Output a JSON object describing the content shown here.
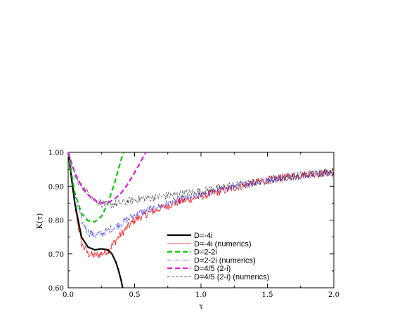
{
  "chart_data": {
    "type": "line",
    "xlabel": "τ",
    "ylabel": "K(τ)",
    "xlim": [
      0.0,
      2.0
    ],
    "ylim": [
      0.6,
      1.0
    ],
    "x_ticks": [
      "0.0",
      "0.5",
      "1.0",
      "1.5",
      "2.0"
    ],
    "y_ticks": [
      "0.60",
      "0.70",
      "0.80",
      "0.90",
      "1.00"
    ],
    "grid": false,
    "legend_position": "lower-center",
    "series": [
      {
        "name": "D=-4i",
        "color": "#000000",
        "style": "solid-thick",
        "x": [
          0.0,
          0.05,
          0.1,
          0.15,
          0.2,
          0.25,
          0.3,
          0.33,
          0.36,
          0.38,
          0.4,
          0.41
        ],
        "y": [
          1.0,
          0.85,
          0.75,
          0.72,
          0.712,
          0.715,
          0.712,
          0.7,
          0.675,
          0.65,
          0.62,
          0.6
        ]
      },
      {
        "name": "D=-4i (numerics)",
        "color": "#ff0000",
        "style": "noisy-thin",
        "noise": 0.012,
        "x": [
          0.0,
          0.05,
          0.1,
          0.15,
          0.2,
          0.25,
          0.3,
          0.4,
          0.5,
          0.6,
          0.8,
          1.0,
          1.2,
          1.4,
          1.6,
          1.8,
          2.0
        ],
        "y": [
          1.0,
          0.84,
          0.73,
          0.7,
          0.695,
          0.7,
          0.71,
          0.76,
          0.8,
          0.82,
          0.85,
          0.87,
          0.89,
          0.91,
          0.925,
          0.935,
          0.94
        ]
      },
      {
        "name": "D=2-2i",
        "color": "#00cc00",
        "style": "dashed-thick",
        "x": [
          0.0,
          0.05,
          0.1,
          0.15,
          0.2,
          0.25,
          0.3,
          0.35,
          0.4,
          0.42
        ],
        "y": [
          1.0,
          0.88,
          0.82,
          0.798,
          0.795,
          0.81,
          0.85,
          0.91,
          0.98,
          1.0
        ]
      },
      {
        "name": "D=2-2i (numerics)",
        "color": "#3333ff",
        "style": "dashdot-noisy",
        "noise": 0.012,
        "x": [
          0.0,
          0.05,
          0.1,
          0.15,
          0.2,
          0.25,
          0.3,
          0.4,
          0.5,
          0.6,
          0.8,
          1.0,
          1.2,
          1.4,
          1.6,
          1.8,
          2.0
        ],
        "y": [
          1.0,
          0.87,
          0.8,
          0.765,
          0.755,
          0.76,
          0.77,
          0.79,
          0.815,
          0.83,
          0.855,
          0.875,
          0.895,
          0.91,
          0.925,
          0.935,
          0.94
        ]
      },
      {
        "name": "D=4/5 (2-i)",
        "color": "#e619d9",
        "style": "dashed-thick",
        "x": [
          0.0,
          0.05,
          0.1,
          0.15,
          0.2,
          0.25,
          0.3,
          0.35,
          0.4,
          0.45,
          0.5,
          0.55,
          0.585
        ],
        "y": [
          1.0,
          0.94,
          0.9,
          0.875,
          0.858,
          0.851,
          0.852,
          0.862,
          0.88,
          0.907,
          0.94,
          0.975,
          1.0
        ]
      },
      {
        "name": "D=4/5 (2-i) (numerics)",
        "color": "#444444",
        "style": "dashed-noisy",
        "noise": 0.012,
        "x": [
          0.0,
          0.05,
          0.1,
          0.15,
          0.2,
          0.25,
          0.3,
          0.4,
          0.5,
          0.6,
          0.8,
          1.0,
          1.2,
          1.4,
          1.6,
          1.8,
          2.0
        ],
        "y": [
          1.0,
          0.93,
          0.9,
          0.88,
          0.86,
          0.85,
          0.845,
          0.85,
          0.86,
          0.865,
          0.875,
          0.885,
          0.9,
          0.91,
          0.925,
          0.935,
          0.945
        ]
      }
    ]
  }
}
